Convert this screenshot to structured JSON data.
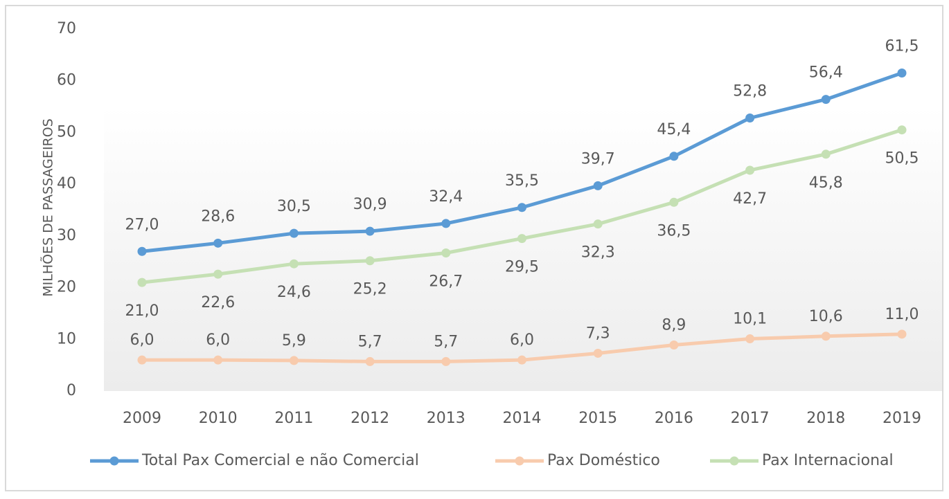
{
  "chart_data": {
    "type": "line",
    "y_label": "MILHÕES DE PASSAGEIROS",
    "categories": [
      "2009",
      "2010",
      "2011",
      "2012",
      "2013",
      "2014",
      "2015",
      "2016",
      "2017",
      "2018",
      "2019"
    ],
    "ylim": [
      0,
      70
    ],
    "yticks": [
      0,
      10,
      20,
      30,
      40,
      50,
      60,
      70
    ],
    "grid": false,
    "legend": "bottom",
    "series": [
      {
        "name": "Total Pax Comercial e não Comercial",
        "color": "#5b9bd5",
        "values": [
          27.0,
          28.6,
          30.5,
          30.9,
          32.4,
          35.5,
          39.7,
          45.4,
          52.8,
          56.4,
          61.5
        ],
        "value_labels": [
          "27,0",
          "28,6",
          "30,5",
          "30,9",
          "32,4",
          "35,5",
          "39,7",
          "45,4",
          "52,8",
          "56,4",
          "61,5"
        ]
      },
      {
        "name": "Pax Doméstico",
        "color": "#f8cbad",
        "values": [
          6.0,
          6.0,
          5.9,
          5.7,
          5.7,
          6.0,
          7.3,
          8.9,
          10.1,
          10.6,
          11.0
        ],
        "value_labels": [
          "6,0",
          "6,0",
          "5,9",
          "5,7",
          "5,7",
          "6,0",
          "7,3",
          "8,9",
          "10,1",
          "10,6",
          "11,0"
        ]
      },
      {
        "name": "Pax Internacional",
        "color": "#c5e0b4",
        "values": [
          21.0,
          22.6,
          24.6,
          25.2,
          26.7,
          29.5,
          32.3,
          36.5,
          42.7,
          45.8,
          50.5
        ],
        "value_labels": [
          "21,0",
          "22,6",
          "24,6",
          "25,2",
          "26,7",
          "29,5",
          "32,3",
          "36,5",
          "42,7",
          "45,8",
          "50,5"
        ]
      }
    ]
  }
}
